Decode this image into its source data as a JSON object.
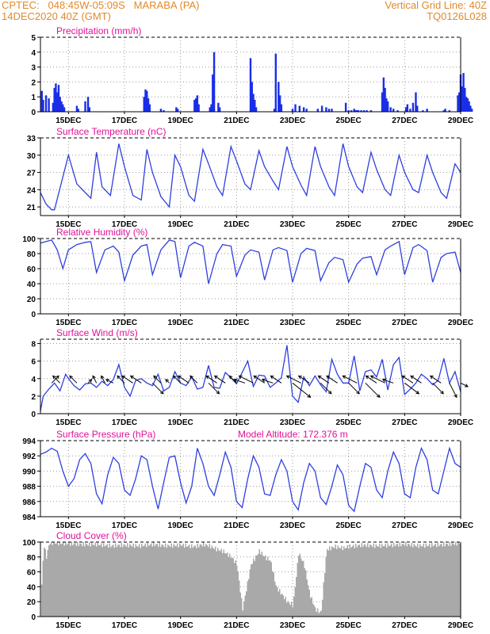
{
  "header": {
    "line1_left": "CPTEC:   048:45W-05:09S   MARABA (PA)",
    "line2_left": "14DEC2020 40Z (GMT)",
    "line1_right": "Vertical Grid Line: 40Z",
    "line2_right": "TQ0126L028"
  },
  "x_labels": [
    "15DEC",
    "17DEC",
    "19DEC",
    "21DEC",
    "23DEC",
    "25DEC",
    "27DEC",
    "29DEC"
  ],
  "x_label_days": [
    15,
    17,
    19,
    21,
    23,
    25,
    27,
    29
  ],
  "x_range": [
    14.0,
    29.0
  ],
  "colors": {
    "line": "#2e3fe0",
    "bar": "#1a2ee8",
    "cloud": "#a9a9a9",
    "title": "#e0119a",
    "header": "#e08a2c",
    "grid": "#999999"
  },
  "chart_data": [
    {
      "type": "bar",
      "title": "Precipitation (mm/h)",
      "ylim": [
        0,
        5
      ],
      "yticks": [
        0,
        1,
        2,
        3,
        4,
        5
      ],
      "series": [
        {
          "x": [
            14.05,
            14.1,
            14.2,
            14.3,
            14.45,
            14.5,
            14.55,
            14.6,
            14.65,
            14.7,
            14.75,
            14.8,
            14.85,
            15.3,
            15.35,
            15.6,
            15.7,
            15.75,
            17.7,
            17.75,
            17.8,
            17.85,
            17.9,
            18.3,
            18.4,
            18.85,
            18.9,
            19.5,
            19.55,
            19.6,
            19.65,
            20.05,
            20.1,
            20.15,
            20.2,
            20.35,
            20.4,
            21.5,
            21.55,
            21.6,
            21.65,
            21.7,
            22.35,
            22.4,
            22.5,
            22.55,
            22.6,
            23.0,
            23.1,
            23.25,
            23.4,
            23.5,
            23.9,
            24.05,
            24.2,
            24.3,
            24.4,
            24.9,
            25.0,
            25.1,
            25.2,
            25.25,
            25.3,
            25.35,
            25.45,
            25.55,
            25.65,
            25.8,
            26.2,
            26.25,
            26.3,
            26.35,
            26.4,
            26.5,
            26.6,
            26.75,
            27.05,
            27.1,
            27.2,
            27.3,
            27.4,
            27.45,
            27.65,
            27.8,
            28.4,
            28.45,
            28.6,
            28.9,
            28.95,
            29.0,
            29.05,
            29.1,
            29.15,
            29.2,
            29.25,
            29.3,
            29.35,
            29.4
          ],
          "values": [
            1.4,
            0.8,
            1.1,
            0.9,
            0.6,
            1.6,
            1.9,
            1.3,
            1.8,
            1.0,
            0.7,
            0.5,
            0.3,
            0.4,
            0.2,
            0.7,
            1.0,
            0.3,
            1.0,
            1.5,
            1.4,
            0.9,
            0.5,
            0.2,
            0.1,
            0.3,
            0.2,
            0.8,
            0.9,
            1.1,
            0.5,
            0.3,
            0.5,
            2.5,
            4.0,
            0.6,
            0.3,
            3.6,
            2.0,
            1.2,
            0.8,
            0.3,
            0.2,
            3.9,
            2.0,
            1.1,
            0.5,
            0.2,
            0.5,
            0.4,
            0.3,
            0.2,
            0.2,
            0.4,
            0.3,
            0.2,
            0.2,
            0.6,
            0.1,
            0.1,
            0.2,
            0.1,
            0.1,
            0.1,
            0.1,
            0.1,
            0.1,
            0.1,
            1.3,
            2.3,
            1.6,
            0.9,
            0.7,
            0.3,
            0.2,
            0.1,
            0.3,
            0.5,
            0.2,
            0.6,
            1.3,
            0.4,
            0.1,
            0.2,
            0.1,
            0.2,
            0.1,
            1.1,
            1.3,
            2.5,
            1.7,
            2.6,
            1.6,
            1.0,
            0.9,
            0.7,
            0.4,
            0.2
          ]
        }
      ]
    },
    {
      "type": "line",
      "title": "Surface Temperature (nC)",
      "ylim": [
        19.5,
        33
      ],
      "yticks": [
        21,
        24,
        27,
        30,
        33
      ],
      "series": [
        {
          "x": [
            14.0,
            14.2,
            14.4,
            14.5,
            15.0,
            15.3,
            15.6,
            15.8,
            16.0,
            16.2,
            16.5,
            16.8,
            17.0,
            17.3,
            17.6,
            17.8,
            18.0,
            18.3,
            18.6,
            18.8,
            19.0,
            19.3,
            19.5,
            19.8,
            20.0,
            20.3,
            20.5,
            20.8,
            21.0,
            21.3,
            21.5,
            21.8,
            22.0,
            22.3,
            22.5,
            22.8,
            23.0,
            23.3,
            23.5,
            23.8,
            24.0,
            24.3,
            24.5,
            24.8,
            25.0,
            25.3,
            25.5,
            25.8,
            26.0,
            26.3,
            26.5,
            26.8,
            27.0,
            27.3,
            27.5,
            27.8,
            28.0,
            28.3,
            28.5,
            28.8,
            29.0
          ],
          "values": [
            23.5,
            21.5,
            20.5,
            20.5,
            30.0,
            25.0,
            23.5,
            22.5,
            30.5,
            24.5,
            23.0,
            32.0,
            28.0,
            23.0,
            22.2,
            31.0,
            27.0,
            22.8,
            21.0,
            30.0,
            28.0,
            23.0,
            22.0,
            31.0,
            28.5,
            24.5,
            23.0,
            31.5,
            29.0,
            25.0,
            24.0,
            30.8,
            28.0,
            25.5,
            24.0,
            31.5,
            28.0,
            24.8,
            23.0,
            31.5,
            28.0,
            24.5,
            23.0,
            32.0,
            28.0,
            24.5,
            23.5,
            30.5,
            27.5,
            24.0,
            23.0,
            30.0,
            27.0,
            24.0,
            23.5,
            30.0,
            27.0,
            23.5,
            22.5,
            28.5,
            27.0
          ]
        }
      ]
    },
    {
      "type": "line",
      "title": "Relative Humidity (%)",
      "ylim": [
        0,
        100
      ],
      "yticks": [
        0,
        20,
        40,
        60,
        80,
        100
      ],
      "series": [
        {
          "x": [
            14.0,
            14.2,
            14.4,
            14.6,
            14.8,
            15.0,
            15.3,
            15.6,
            15.8,
            16.0,
            16.3,
            16.6,
            16.8,
            17.0,
            17.3,
            17.6,
            17.8,
            18.0,
            18.3,
            18.6,
            18.8,
            19.0,
            19.3,
            19.5,
            19.8,
            20.0,
            20.3,
            20.5,
            20.8,
            21.0,
            21.3,
            21.5,
            21.8,
            22.0,
            22.3,
            22.5,
            22.8,
            23.0,
            23.3,
            23.5,
            23.8,
            24.0,
            24.3,
            24.5,
            24.8,
            25.0,
            25.3,
            25.5,
            25.8,
            26.0,
            26.3,
            26.5,
            26.8,
            27.0,
            27.3,
            27.5,
            27.8,
            28.0,
            28.3,
            28.5,
            28.8,
            29.0
          ],
          "values": [
            94,
            96,
            98,
            85,
            60,
            85,
            92,
            95,
            96,
            55,
            85,
            90,
            82,
            44,
            78,
            90,
            92,
            52,
            85,
            98,
            96,
            48,
            90,
            95,
            90,
            40,
            80,
            92,
            90,
            50,
            78,
            85,
            82,
            45,
            85,
            88,
            84,
            42,
            80,
            87,
            84,
            44,
            68,
            75,
            72,
            42,
            66,
            74,
            76,
            52,
            85,
            90,
            96,
            52,
            88,
            92,
            84,
            42,
            75,
            80,
            82,
            55
          ]
        }
      ]
    },
    {
      "type": "line",
      "title": "Surface Wind (m/s)",
      "ylim": [
        0,
        8.5
      ],
      "yticks": [
        0,
        2,
        4,
        6,
        8
      ],
      "series": [
        {
          "x": [
            14.0,
            14.1,
            14.3,
            14.5,
            14.7,
            14.9,
            15.0,
            15.2,
            15.4,
            15.6,
            15.8,
            16.0,
            16.2,
            16.4,
            16.6,
            16.8,
            17.0,
            17.2,
            17.4,
            17.6,
            17.8,
            18.0,
            18.2,
            18.4,
            18.6,
            18.8,
            19.0,
            19.2,
            19.4,
            19.6,
            19.8,
            20.0,
            20.2,
            20.4,
            20.6,
            20.8,
            21.0,
            21.2,
            21.4,
            21.6,
            21.8,
            22.0,
            22.2,
            22.4,
            22.6,
            22.8,
            23.0,
            23.2,
            23.4,
            23.6,
            23.8,
            24.0,
            24.2,
            24.4,
            24.6,
            24.8,
            25.0,
            25.2,
            25.4,
            25.6,
            25.8,
            26.0,
            26.2,
            26.4,
            26.6,
            26.8,
            27.0,
            27.2,
            27.4,
            27.6,
            27.8,
            28.0,
            28.2,
            28.4,
            28.6,
            28.8,
            29.0
          ],
          "values": [
            0.3,
            2.0,
            2.8,
            3.5,
            2.6,
            4.5,
            4.0,
            3.2,
            2.7,
            3.4,
            3.5,
            3.0,
            3.7,
            3.2,
            3.9,
            5.6,
            3.0,
            2.0,
            3.8,
            4.0,
            3.5,
            3.2,
            4.5,
            2.6,
            3.0,
            4.8,
            3.5,
            3.2,
            4.2,
            2.8,
            3.0,
            5.5,
            3.0,
            2.9,
            4.7,
            4.1,
            3.4,
            4.7,
            6.0,
            3.1,
            4.4,
            4.3,
            3.0,
            3.5,
            4.1,
            7.8,
            2.0,
            1.3,
            4.2,
            3.2,
            4.3,
            3.3,
            2.5,
            6.2,
            4.5,
            3.5,
            3.5,
            6.6,
            2.6,
            4.8,
            5.0,
            4.2,
            6.2,
            2.7,
            5.6,
            6.4,
            2.2,
            2.8,
            3.5,
            4.5,
            4.0,
            3.3,
            3.8,
            6.3,
            3.5,
            4.8,
            2.5
          ]
        }
      ],
      "arrows": {
        "x": [
          14.4,
          14.7,
          15.3,
          15.7,
          16.0,
          16.3,
          16.6,
          17.0,
          17.3,
          17.6,
          18.0,
          18.3,
          18.6,
          19.0,
          19.3,
          19.6,
          20.0,
          20.3,
          20.6,
          21.0,
          21.3,
          21.6,
          22.0,
          22.3,
          22.6,
          23.0,
          23.3,
          23.6,
          24.0,
          24.3,
          24.6,
          25.0,
          25.3,
          25.6,
          26.0,
          26.3,
          26.6,
          27.0,
          27.3,
          27.6,
          28.0,
          28.3,
          28.6,
          29.0
        ],
        "u": [
          2,
          -2,
          -2,
          1,
          -1,
          -1,
          -2,
          -2,
          -3,
          -3,
          3,
          -2,
          -1,
          -2,
          -3,
          -2,
          3,
          -3,
          -3,
          -2,
          -3,
          -4,
          -3,
          -3,
          -3,
          5,
          -4,
          -3,
          3,
          -3,
          -3,
          3,
          -4,
          4,
          -3,
          -4,
          -3,
          4,
          -3,
          -3,
          3,
          -3,
          2,
          2
        ],
        "v": [
          2,
          2,
          2,
          1,
          2,
          2,
          1,
          2,
          2,
          2,
          -3,
          2,
          1,
          2,
          2,
          2,
          -3,
          2,
          2,
          2,
          1,
          2,
          2,
          1,
          2,
          -4,
          2,
          2,
          -3,
          2,
          2,
          -3,
          2,
          -4,
          2,
          2,
          1,
          -3,
          2,
          2,
          -3,
          2,
          -4,
          -1
        ]
      }
    },
    {
      "type": "line",
      "title": "Surface Pressure (hPa)",
      "annotation": "Model Altitude: 172.376 m",
      "ylim": [
        984,
        994
      ],
      "yticks": [
        984,
        986,
        988,
        990,
        992,
        994
      ],
      "series": [
        {
          "x": [
            14.0,
            14.2,
            14.4,
            14.6,
            14.8,
            15.0,
            15.2,
            15.4,
            15.6,
            15.8,
            16.0,
            16.2,
            16.4,
            16.6,
            16.8,
            17.0,
            17.2,
            17.4,
            17.6,
            17.8,
            18.0,
            18.2,
            18.4,
            18.6,
            18.8,
            19.0,
            19.2,
            19.4,
            19.6,
            19.8,
            20.0,
            20.2,
            20.4,
            20.6,
            20.8,
            21.0,
            21.2,
            21.4,
            21.6,
            21.8,
            22.0,
            22.2,
            22.4,
            22.6,
            22.8,
            23.0,
            23.2,
            23.4,
            23.6,
            23.8,
            24.0,
            24.2,
            24.4,
            24.6,
            24.8,
            25.0,
            25.2,
            25.4,
            25.6,
            25.8,
            26.0,
            26.2,
            26.4,
            26.6,
            26.8,
            27.0,
            27.2,
            27.4,
            27.6,
            27.8,
            28.0,
            28.2,
            28.4,
            28.6,
            28.8,
            29.0
          ],
          "values": [
            992.2,
            992.5,
            993.0,
            992.6,
            990.0,
            988.0,
            989.0,
            991.5,
            992.3,
            991.0,
            987.0,
            985.7,
            989.5,
            991.8,
            991.0,
            987.5,
            986.8,
            989.0,
            992.0,
            991.5,
            988.0,
            985.0,
            988.5,
            991.8,
            992.0,
            988.5,
            985.8,
            988.0,
            993.0,
            991.0,
            988.0,
            986.8,
            989.5,
            992.5,
            990.5,
            986.0,
            985.2,
            989.0,
            992.0,
            990.5,
            987.0,
            986.8,
            989.5,
            991.5,
            990.0,
            986.0,
            984.9,
            988.5,
            991.0,
            990.0,
            986.5,
            985.6,
            988.0,
            990.8,
            989.5,
            985.5,
            984.7,
            988.0,
            991.0,
            990.5,
            987.5,
            986.5,
            990.0,
            992.5,
            991.0,
            987.0,
            986.5,
            990.5,
            993.0,
            991.5,
            987.5,
            987.0,
            990.0,
            993.0,
            991.0,
            990.5
          ]
        }
      ]
    },
    {
      "type": "bar",
      "title": "Cloud Cover (%)",
      "ylim": [
        0,
        100
      ],
      "yticks": [
        0,
        20,
        40,
        60,
        80,
        100
      ],
      "cloud_profile": {
        "x": [
          14.0,
          14.1,
          14.2,
          14.3,
          14.5,
          15.0,
          15.5,
          16.0,
          16.5,
          17.0,
          17.5,
          18.0,
          18.5,
          19.0,
          19.5,
          19.8,
          20.0,
          20.3,
          20.5,
          20.8,
          21.0,
          21.2,
          21.5,
          21.8,
          22.0,
          22.2,
          22.4,
          22.6,
          22.8,
          23.0,
          23.2,
          23.4,
          23.6,
          23.8,
          24.0,
          24.2,
          24.5,
          24.8,
          25.0,
          25.5,
          26.0,
          26.5,
          27.0,
          27.5,
          28.0,
          28.5,
          29.0
        ],
        "values": [
          20,
          97,
          80,
          99,
          99,
          98,
          97,
          97,
          95,
          96,
          95,
          97,
          95,
          96,
          94,
          97,
          95,
          90,
          88,
          80,
          70,
          10,
          70,
          88,
          80,
          75,
          40,
          30,
          20,
          15,
          85,
          70,
          30,
          10,
          5,
          90,
          94,
          92,
          94,
          96,
          95,
          96,
          97,
          95,
          96,
          97,
          99
        ]
      }
    }
  ]
}
